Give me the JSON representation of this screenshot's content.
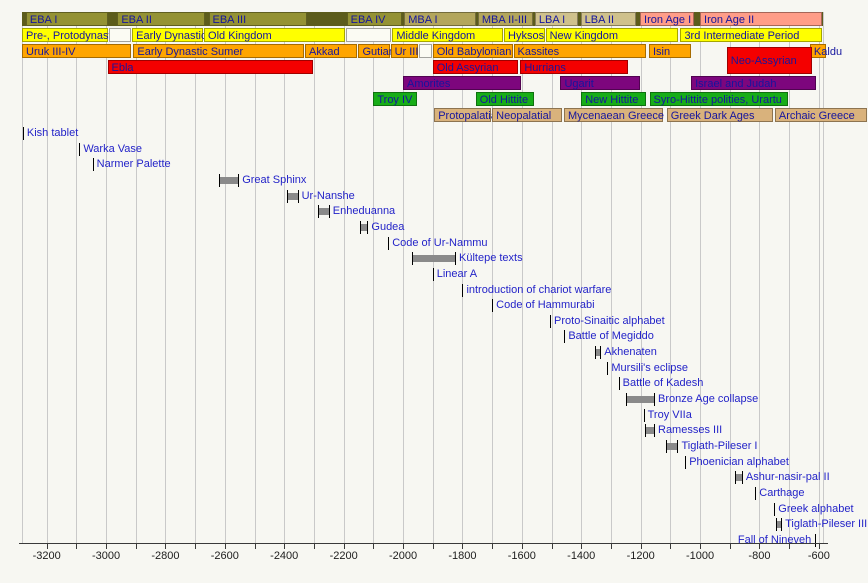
{
  "chart_title": "",
  "colors": {
    "background": "#f7f7f2",
    "gridline": "#c9c9c9",
    "axis": "#3a3a3a",
    "band_label": "#15159e",
    "event_label": "#2323c8",
    "event_tick": "#000000",
    "event_bar": "#8a8a8a",
    "row_filler": "#5c5c1c",
    "khaki": "#949234",
    "mba": "#b3a65c",
    "lba": "#cfc18c",
    "iron": "#ff9d88",
    "yellow": "#ffff00",
    "white_block": "#fbfbf3",
    "orange": "#ffa500",
    "red": "#f40000",
    "purple": "#7d067d",
    "green": "#17ad17",
    "tan": "#d9b27c"
  },
  "chart_data": {
    "type": "timeline",
    "x_axis": {
      "min": -3283,
      "max": -587,
      "gridline_step": 100,
      "tick_step": 100,
      "label_step": 200,
      "first_tick": -3200,
      "last_tick": -600,
      "tick_labels": [
        "-3200",
        "-3000",
        "-2800",
        "-2600",
        "-2400",
        "-2200",
        "-2000",
        "-1800",
        "-1600",
        "-1400",
        "-1200",
        "-1000",
        "-800",
        "-600"
      ]
    },
    "period_rows": [
      {
        "name": "archaeological-period",
        "filler": true,
        "blocks": [
          {
            "label": "EBA I",
            "start": -3270,
            "end": -2990,
            "color": "khaki"
          },
          {
            "label": "EBA II",
            "start": -2962,
            "end": -2662,
            "color": "khaki"
          },
          {
            "label": "EBA III",
            "start": -2655,
            "end": -2320,
            "color": "khaki"
          },
          {
            "label": "EBA IV",
            "start": -2190,
            "end": -2000,
            "color": "khaki"
          },
          {
            "label": "MBA I",
            "start": -1996,
            "end": -1752,
            "color": "mba"
          },
          {
            "label": "MBA II-III",
            "start": -1748,
            "end": -1560,
            "color": "mba"
          },
          {
            "label": "LBA I",
            "start": -1556,
            "end": -1406,
            "color": "lba"
          },
          {
            "label": "LBA II",
            "start": -1402,
            "end": -1212,
            "color": "lba"
          },
          {
            "label": "Iron Age I",
            "start": -1202,
            "end": -1016,
            "color": "iron"
          },
          {
            "label": "Iron Age II",
            "start": -1000,
            "end": -587,
            "color": "iron"
          }
        ]
      },
      {
        "name": "egypt",
        "blocks": [
          {
            "label": "Pre-, Protodynastic",
            "start": -3283,
            "end": -2990,
            "color": "yellow"
          },
          {
            "label": "",
            "start": -2990,
            "end": -2912,
            "color": "white_block"
          },
          {
            "label": "Early Dynastic",
            "start": -2912,
            "end": -2670,
            "color": "yellow"
          },
          {
            "label": "Old Kingdom",
            "start": -2670,
            "end": -2192,
            "color": "yellow"
          },
          {
            "label": "",
            "start": -2192,
            "end": -2036,
            "color": "white_block"
          },
          {
            "label": "Middle Kingdom",
            "start": -2036,
            "end": -1660,
            "color": "yellow"
          },
          {
            "label": "Hyksos",
            "start": -1660,
            "end": -1520,
            "color": "yellow"
          },
          {
            "label": "New Kingdom",
            "start": -1520,
            "end": -1070,
            "color": "yellow"
          },
          {
            "label": "3rd Intermediate Period",
            "start": -1066,
            "end": -587,
            "color": "yellow"
          }
        ]
      },
      {
        "name": "south-mesopotamia",
        "blocks": [
          {
            "label": "Uruk III-IV",
            "start": -3283,
            "end": -2912,
            "color": "orange"
          },
          {
            "label": "Early Dynastic Sumer",
            "start": -2908,
            "end": -2330,
            "color": "orange"
          },
          {
            "label": "Akkad",
            "start": -2330,
            "end": -2150,
            "color": "orange"
          },
          {
            "label": "Gutian",
            "start": -2150,
            "end": -2042,
            "color": "orange"
          },
          {
            "label": "Ur III",
            "start": -2042,
            "end": -1945,
            "color": "orange"
          },
          {
            "label": "",
            "start": -1945,
            "end": -1900,
            "color": "white_block"
          },
          {
            "label": "Old Babylonian",
            "start": -1900,
            "end": -1628,
            "color": "orange"
          },
          {
            "label": "Kassites",
            "start": -1628,
            "end": -1180,
            "color": "orange"
          },
          {
            "label": "Isin",
            "start": -1172,
            "end": -1027,
            "color": "orange"
          },
          {
            "label": "Kaldu",
            "start": -630,
            "end": -573,
            "color": "orange"
          }
        ]
      },
      {
        "name": "north-mesopotamia-syria",
        "blocks": [
          {
            "label": "Ebla",
            "start": -2995,
            "end": -2300,
            "color": "red"
          },
          {
            "label": "Old Assyrian",
            "start": -1900,
            "end": -1610,
            "color": "red"
          },
          {
            "label": "Hurrians",
            "start": -1605,
            "end": -1240,
            "color": "red"
          },
          {
            "label": "Neo-Assyrian",
            "start": -910,
            "end": -620,
            "color": "red",
            "tall": true
          }
        ]
      },
      {
        "name": "levant",
        "blocks": [
          {
            "label": "Amorites",
            "start": -2000,
            "end": -1598,
            "color": "purple"
          },
          {
            "label": "Ugarit",
            "start": -1470,
            "end": -1200,
            "color": "purple"
          },
          {
            "label": "Israel and Judah",
            "start": -1030,
            "end": -605,
            "color": "purple"
          }
        ]
      },
      {
        "name": "anatolia",
        "blocks": [
          {
            "label": "Troy IV",
            "start": -2100,
            "end": -1950,
            "color": "green"
          },
          {
            "label": "Old Hittite",
            "start": -1755,
            "end": -1555,
            "color": "green"
          },
          {
            "label": "New Hittite",
            "start": -1400,
            "end": -1178,
            "color": "green"
          },
          {
            "label": "Syro-Hittite polities, Urartu",
            "start": -1170,
            "end": -700,
            "color": "green"
          }
        ]
      },
      {
        "name": "aegean",
        "blocks": [
          {
            "label": "Protopalatial",
            "start": -1895,
            "end": -1700,
            "color": "tan"
          },
          {
            "label": "Neopalatial",
            "start": -1700,
            "end": -1462,
            "color": "tan"
          },
          {
            "label": "Mycenaean Greece",
            "start": -1458,
            "end": -1120,
            "color": "tan"
          },
          {
            "label": "Greek Dark Ages",
            "start": -1112,
            "end": -752,
            "color": "tan"
          },
          {
            "label": "Archaic Greece",
            "start": -748,
            "end": -435,
            "color": "tan"
          }
        ]
      }
    ],
    "events": [
      {
        "label": "Kish tablet",
        "year": -3280
      },
      {
        "label": "Warka Vase",
        "year": -3090
      },
      {
        "label": "Narmer Palette",
        "year": -3045
      },
      {
        "label": "Great Sphinx",
        "start": -2620,
        "end": -2555
      },
      {
        "label": "Ur-Nanshe",
        "start": -2390,
        "end": -2355
      },
      {
        "label": "Enheduanna",
        "start": -2285,
        "end": -2250
      },
      {
        "label": "Gudea",
        "start": -2144,
        "end": -2120
      },
      {
        "label": "Code of Ur-Nammu",
        "year": -2050
      },
      {
        "label": "Kültepe texts",
        "start": -1970,
        "end": -1825
      },
      {
        "label": "Linear A",
        "year": -1900
      },
      {
        "label": "introduction of chariot warfare",
        "year": -1800
      },
      {
        "label": "Code of Hammurabi",
        "year": -1700
      },
      {
        "label": "Proto-Sinaitic alphabet",
        "year": -1505
      },
      {
        "label": "Battle of Megiddo",
        "year": -1457
      },
      {
        "label": "Akhenaten",
        "start": -1353,
        "end": -1336
      },
      {
        "label": "Mursili's eclipse",
        "year": -1312
      },
      {
        "label": "Battle of Kadesh",
        "year": -1274
      },
      {
        "label": "Bronze Age collapse",
        "start": -1250,
        "end": -1155
      },
      {
        "label": "Troy VIIa",
        "year": -1190
      },
      {
        "label": "Ramesses III",
        "start": -1186,
        "end": -1155
      },
      {
        "label": "Tiglath-Pileser I",
        "start": -1114,
        "end": -1076
      },
      {
        "label": "Phoenician alphabet",
        "year": -1050
      },
      {
        "label": "Ashur-nasir-pal II",
        "start": -883,
        "end": -859
      },
      {
        "label": "Carthage",
        "year": -814
      },
      {
        "label": "Greek alphabet",
        "year": -750
      },
      {
        "label": "Tiglath-Pileser III",
        "start": -745,
        "end": -727
      },
      {
        "label": "Fall of Nineveh",
        "year": -612,
        "label_side": "left"
      }
    ]
  }
}
